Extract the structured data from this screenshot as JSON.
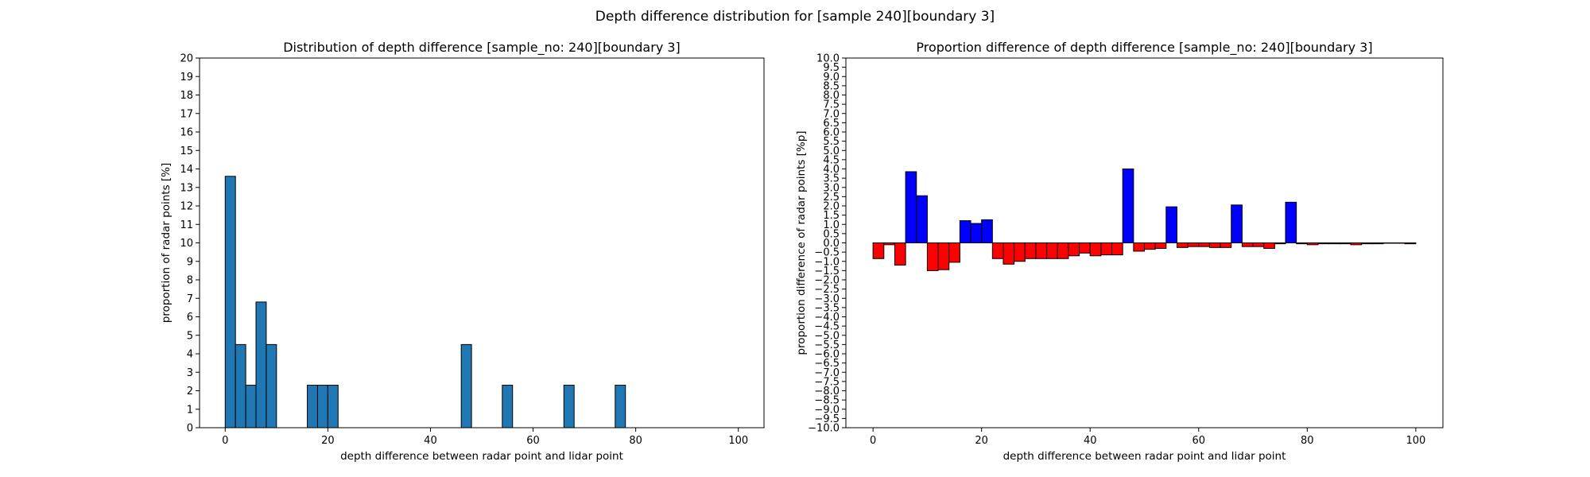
{
  "figure": {
    "suptitle": "Depth difference distribution for [sample 240][boundary 3]"
  },
  "chart_data": [
    {
      "type": "bar",
      "title": "Distribution of depth difference [sample_no: 240][boundary 3]",
      "xlabel": "depth difference between radar point and lidar point",
      "ylabel": "proportion of radar points [%]",
      "xlim": [
        -5,
        105
      ],
      "ylim": [
        0,
        20
      ],
      "xticks": [
        0,
        20,
        40,
        60,
        80,
        100
      ],
      "yticks": [
        0,
        1,
        2,
        3,
        4,
        5,
        6,
        7,
        8,
        9,
        10,
        11,
        12,
        13,
        14,
        15,
        16,
        17,
        18,
        19,
        20
      ],
      "bin_width": 2,
      "bin_starts": [
        0,
        2,
        4,
        6,
        8,
        10,
        12,
        14,
        16,
        18,
        20,
        22,
        24,
        26,
        28,
        30,
        32,
        34,
        36,
        38,
        40,
        42,
        44,
        46,
        48,
        50,
        52,
        54,
        56,
        58,
        60,
        62,
        64,
        66,
        68,
        70,
        72,
        74,
        76,
        78,
        80,
        82,
        84,
        86,
        88,
        90,
        92,
        94,
        96,
        98
      ],
      "values": [
        13.6,
        4.5,
        2.3,
        6.8,
        4.5,
        0,
        0,
        0,
        2.3,
        2.3,
        2.3,
        0,
        0,
        0,
        0,
        0,
        0,
        0,
        0,
        0,
        0,
        0,
        0,
        4.5,
        0,
        0,
        0,
        2.3,
        0,
        0,
        0,
        0,
        0,
        2.3,
        0,
        0,
        0,
        0,
        2.3,
        0,
        0,
        0,
        0,
        0,
        0,
        0,
        0,
        0,
        0,
        0
      ],
      "bar_color": "#1f77b4",
      "edge_color": "#000000",
      "grid": false
    },
    {
      "type": "bar",
      "title": "Proportion difference of depth difference [sample_no: 240][boundary 3]",
      "xlabel": "depth difference between radar point and lidar point",
      "ylabel": "proportion difference of radar points [%p]",
      "xlim": [
        -5,
        105
      ],
      "ylim": [
        -10,
        10
      ],
      "xticks": [
        0,
        20,
        40,
        60,
        80,
        100
      ],
      "yticks": [
        -10.0,
        -9.5,
        -9.0,
        -8.5,
        -8.0,
        -7.5,
        -7.0,
        -6.5,
        -6.0,
        -5.5,
        -5.0,
        -4.5,
        -4.0,
        -3.5,
        -3.0,
        -2.5,
        -2.0,
        -1.5,
        -1.0,
        -0.5,
        0.0,
        0.5,
        1.0,
        1.5,
        2.0,
        2.5,
        3.0,
        3.5,
        4.0,
        4.5,
        5.0,
        5.5,
        6.0,
        6.5,
        7.0,
        7.5,
        8.0,
        8.5,
        9.0,
        9.5,
        10.0
      ],
      "bin_width": 2,
      "bin_starts": [
        0,
        2,
        4,
        6,
        8,
        10,
        12,
        14,
        16,
        18,
        20,
        22,
        24,
        26,
        28,
        30,
        32,
        34,
        36,
        38,
        40,
        42,
        44,
        46,
        48,
        50,
        52,
        54,
        56,
        58,
        60,
        62,
        64,
        66,
        68,
        70,
        72,
        74,
        76,
        78,
        80,
        82,
        84,
        86,
        88,
        90,
        92,
        94,
        96,
        98
      ],
      "values": [
        -0.85,
        -0.1,
        -1.2,
        3.85,
        2.55,
        -1.5,
        -1.45,
        -1.05,
        1.2,
        1.05,
        1.25,
        -0.85,
        -1.15,
        -1.0,
        -0.85,
        -0.85,
        -0.85,
        -0.85,
        -0.7,
        -0.55,
        -0.7,
        -0.65,
        -0.65,
        4.0,
        -0.45,
        -0.35,
        -0.3,
        1.95,
        -0.25,
        -0.2,
        -0.2,
        -0.25,
        -0.25,
        2.05,
        -0.2,
        -0.2,
        -0.3,
        -0.05,
        2.2,
        -0.05,
        -0.1,
        -0.05,
        -0.05,
        -0.05,
        -0.1,
        -0.05,
        -0.05,
        -0.02,
        -0.02,
        -0.05
      ],
      "positive_color": "#0000ff",
      "negative_color": "#ff0000",
      "edge_color": "#000000",
      "grid": false
    }
  ]
}
